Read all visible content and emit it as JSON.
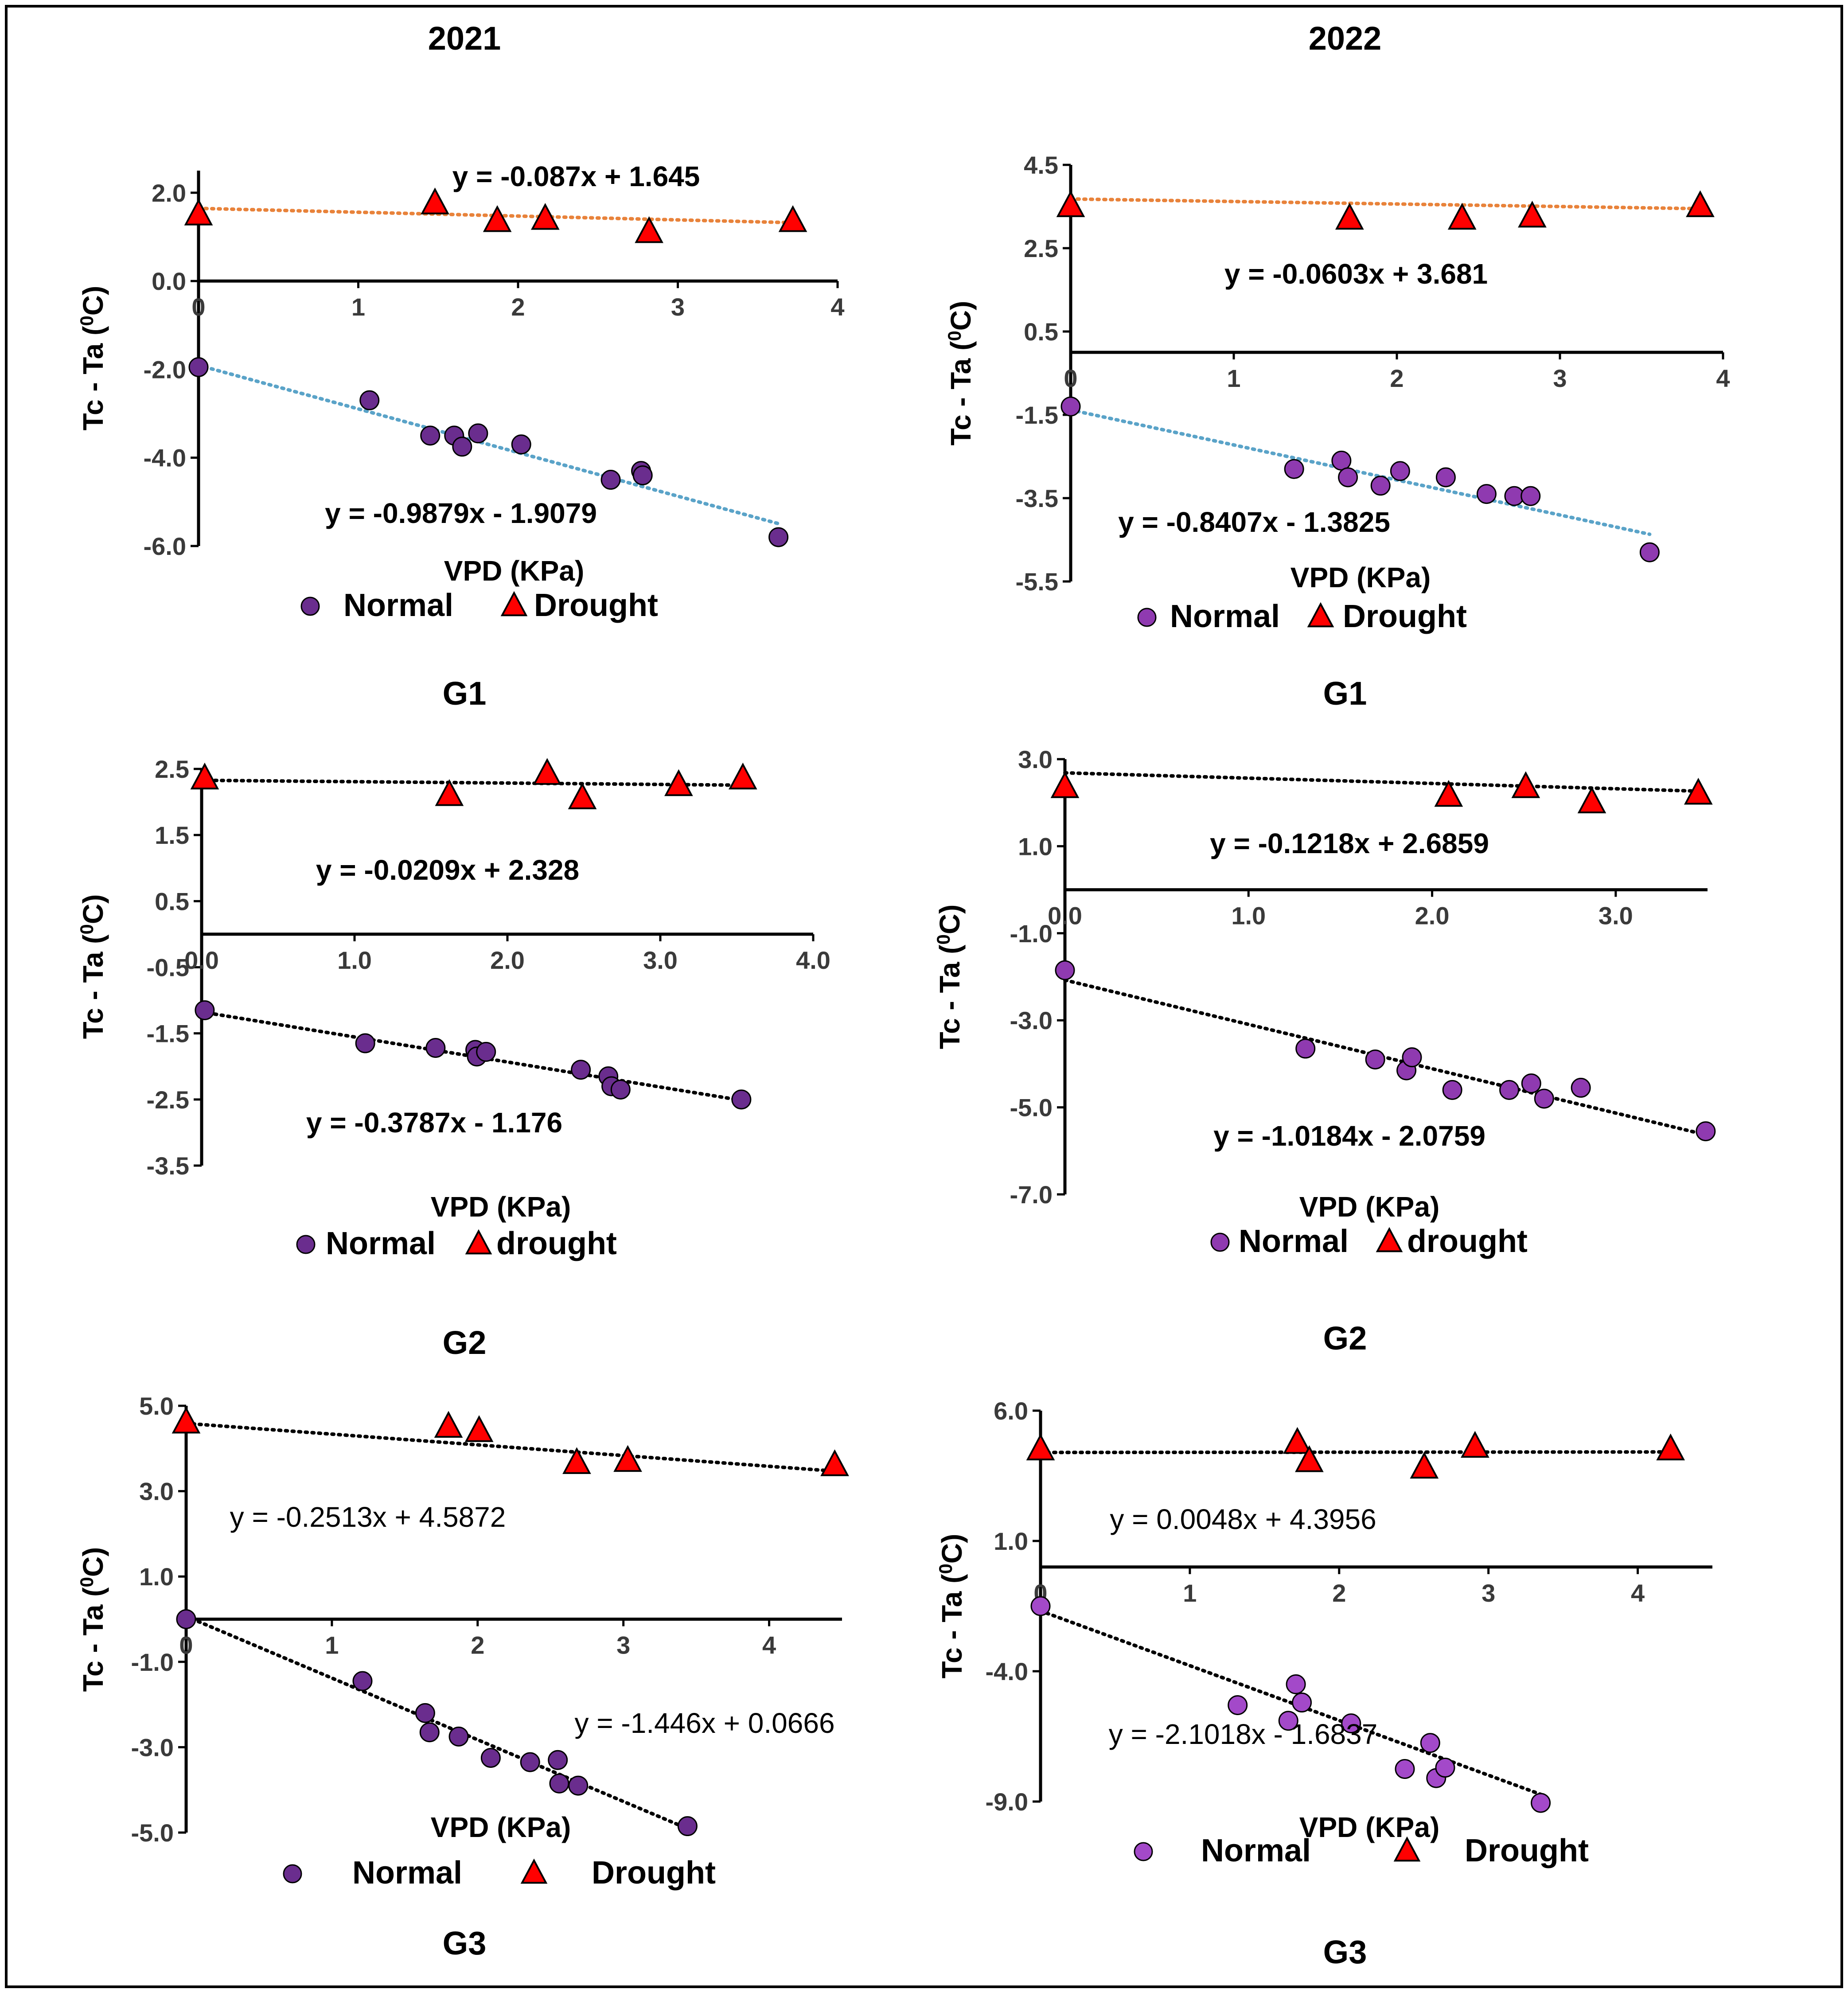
{
  "figure": {
    "column_titles": [
      "2021",
      "2022"
    ],
    "colors": {
      "normal_2021": "#6a2d8e",
      "normal_2022": "#8f3ab0",
      "normal_light": "#a349c9",
      "drought": "#ff0000",
      "frame": "#000000",
      "trend_orange": "#e8823a",
      "trend_blue": "#5aa3c8",
      "trend_black": "#000000"
    },
    "icons": {
      "normal": "circle-marker",
      "drought": "triangle-marker"
    }
  },
  "chart_data": [
    {
      "id": "2021-G1",
      "type": "scatter",
      "year": "2021",
      "group": "G1",
      "ylabel": "Tc - Ta (0C)",
      "ylabel_main": "Tc - Ta (",
      "ylabel_sup": "0",
      "ylabel_end": "C)",
      "xlabel": "VPD (KPa)",
      "xlim": [
        0,
        4
      ],
      "ylim": [
        -6,
        2.5
      ],
      "xticks": [
        "0",
        "1",
        "2",
        "3",
        "4"
      ],
      "xtick_values": [
        0,
        1,
        2,
        3,
        4
      ],
      "yticks": [
        "2.0",
        "0.0",
        "-2.0",
        "-4.0",
        "-6.0"
      ],
      "ytick_values": [
        2,
        0,
        -2,
        -4,
        -6
      ],
      "series": [
        {
          "name": "Normal",
          "marker": "circle",
          "color": "#6a2d8e",
          "x": [
            0.0,
            1.07,
            1.45,
            1.6,
            1.65,
            1.75,
            2.02,
            2.58,
            2.77,
            2.78,
            3.63
          ],
          "y": [
            -1.95,
            -2.7,
            -3.5,
            -3.5,
            -3.75,
            -3.45,
            -3.7,
            -4.5,
            -4.3,
            -4.4,
            -5.8
          ],
          "trend": {
            "slope": -0.9879,
            "intercept": -1.9079,
            "equation": "y = -0.9879x - 1.9079",
            "color": "#5aa3c8"
          }
        },
        {
          "name": "Drought",
          "marker": "triangle",
          "color": "#ff0000",
          "x": [
            0.0,
            1.48,
            1.87,
            2.17,
            2.82,
            3.72
          ],
          "y": [
            1.5,
            1.75,
            1.35,
            1.4,
            1.1,
            1.35
          ],
          "trend": {
            "slope": -0.087,
            "intercept": 1.645,
            "equation": "y = -0.087x + 1.645",
            "color": "#e8823a"
          }
        }
      ],
      "legend": [
        "Normal",
        "Drought"
      ]
    },
    {
      "id": "2022-G1",
      "type": "scatter",
      "year": "2022",
      "group": "G1",
      "ylabel": "Tc - Ta (0C)",
      "ylabel_main": "Tc - Ta (",
      "ylabel_sup": "0",
      "ylabel_end": "C)",
      "xlabel": "VPD (KPa)",
      "xlim": [
        0,
        4
      ],
      "ylim": [
        -5.5,
        4.5
      ],
      "xticks": [
        "0",
        "1",
        "2",
        "3",
        "4"
      ],
      "xtick_values": [
        0,
        1,
        2,
        3,
        4
      ],
      "yticks": [
        "4.5",
        "2.5",
        "0.5",
        "-1.5",
        "-3.5",
        "-5.5"
      ],
      "ytick_values": [
        4.5,
        2.5,
        0.5,
        -1.5,
        -3.5,
        -5.5
      ],
      "series": [
        {
          "name": "Normal",
          "marker": "circle",
          "color": "#8f3ab0",
          "x": [
            0.0,
            1.37,
            1.66,
            1.7,
            1.9,
            2.02,
            2.3,
            2.55,
            2.72,
            2.82,
            3.55
          ],
          "y": [
            -1.3,
            -2.8,
            -2.6,
            -3.0,
            -3.2,
            -2.85,
            -3.0,
            -3.4,
            -3.45,
            -3.45,
            -4.8
          ],
          "trend": {
            "slope": -0.8407,
            "intercept": -1.3825,
            "equation": "y = -0.8407x - 1.3825",
            "color": "#5aa3c8"
          }
        },
        {
          "name": "Drought",
          "marker": "triangle",
          "color": "#ff0000",
          "x": [
            0.0,
            1.71,
            2.4,
            2.83,
            3.86
          ],
          "y": [
            3.5,
            3.2,
            3.2,
            3.25,
            3.5
          ],
          "trend": {
            "slope": -0.0603,
            "intercept": 3.681,
            "equation": "y = -0.0603x + 3.681",
            "color": "#e8823a"
          }
        }
      ],
      "legend": [
        "Normal",
        "Drought"
      ]
    },
    {
      "id": "2021-G2",
      "type": "scatter",
      "year": "2021",
      "group": "G2",
      "ylabel": "Tc - Ta (0C)",
      "ylabel_main": "Tc - Ta (",
      "ylabel_sup": "0",
      "ylabel_end": "C)",
      "xlabel": "VPD (KPa)",
      "xlim": [
        0,
        4
      ],
      "ylim": [
        -3.5,
        2.5
      ],
      "xticks": [
        "0.0",
        "1.0",
        "2.0",
        "3.0",
        "4.0"
      ],
      "xtick_values": [
        0,
        1,
        2,
        3,
        4
      ],
      "yticks": [
        "2.5",
        "1.5",
        "0.5",
        "-0.5",
        "-1.5",
        "-2.5",
        "-3.5"
      ],
      "ytick_values": [
        2.5,
        1.5,
        0.5,
        -0.5,
        -1.5,
        -2.5,
        -3.5
      ],
      "series": [
        {
          "name": "Normal",
          "marker": "circle",
          "color": "#6a2d8e",
          "x": [
            0.02,
            1.07,
            1.53,
            1.79,
            1.8,
            1.86,
            2.48,
            2.66,
            2.68,
            2.74,
            3.53
          ],
          "y": [
            -1.15,
            -1.65,
            -1.72,
            -1.75,
            -1.85,
            -1.78,
            -2.05,
            -2.15,
            -2.3,
            -2.35,
            -2.5
          ],
          "trend": {
            "slope": -0.3787,
            "intercept": -1.176,
            "equation": "y = -0.3787x - 1.176",
            "color": "#000000"
          }
        },
        {
          "name": "drought",
          "marker": "triangle",
          "color": "#ff0000",
          "x": [
            0.02,
            1.62,
            2.26,
            2.49,
            3.12,
            3.54
          ],
          "y": [
            2.35,
            2.1,
            2.42,
            2.05,
            2.25,
            2.35
          ],
          "trend": {
            "slope": -0.0209,
            "intercept": 2.328,
            "equation": "y = -0.0209x + 2.328",
            "color": "#000000"
          }
        }
      ],
      "legend": [
        "Normal",
        "drought"
      ]
    },
    {
      "id": "2022-G2",
      "type": "scatter",
      "year": "2022",
      "group": "G2",
      "ylabel": "Tc - Ta (0C)",
      "ylabel_main": "Tc - Ta (",
      "ylabel_sup": "0",
      "ylabel_end": "C)",
      "xlabel": "VPD (KPa)",
      "xlim": [
        0,
        3.5
      ],
      "ylim": [
        -7,
        3
      ],
      "xticks": [
        "0.0",
        "1.0",
        "2.0",
        "3.0"
      ],
      "xtick_values": [
        0,
        1,
        2,
        3
      ],
      "yticks": [
        "3.0",
        "1.0",
        "-1.0",
        "-3.0",
        "-5.0",
        "-7.0"
      ],
      "ytick_values": [
        3,
        1,
        -1,
        -3,
        -5,
        -7
      ],
      "series": [
        {
          "name": "Normal",
          "marker": "circle",
          "color": "#8f3ab0",
          "x": [
            0.0,
            1.31,
            1.69,
            1.86,
            1.89,
            2.11,
            2.42,
            2.54,
            2.61,
            2.81,
            3.49
          ],
          "y": [
            -1.85,
            -3.65,
            -3.9,
            -4.15,
            -3.85,
            -4.6,
            -4.6,
            -4.45,
            -4.8,
            -4.55,
            -5.55
          ],
          "trend": {
            "slope": -1.0184,
            "intercept": -2.0759,
            "equation": "y = -1.0184x - 2.0759",
            "color": "#000000"
          }
        },
        {
          "name": "drought",
          "marker": "triangle",
          "color": "#ff0000",
          "x": [
            0.0,
            2.09,
            2.51,
            2.87,
            3.45
          ],
          "y": [
            2.35,
            2.15,
            2.35,
            2.0,
            2.2
          ],
          "trend": {
            "slope": -0.1218,
            "intercept": 2.6859,
            "equation": "y = -0.1218x + 2.6859",
            "color": "#000000"
          }
        }
      ],
      "legend": [
        "Normal",
        "drought"
      ]
    },
    {
      "id": "2021-G3",
      "type": "scatter",
      "year": "2021",
      "group": "G3",
      "ylabel": "Tc - Ta (0C)",
      "ylabel_main": "Tc - Ta (",
      "ylabel_sup": "0",
      "ylabel_end": "C)",
      "xlabel": "VPD (KPa)",
      "xlim": [
        0,
        4.5
      ],
      "ylim": [
        -5,
        5
      ],
      "xticks": [
        "0",
        "1",
        "2",
        "3",
        "4"
      ],
      "xtick_values": [
        0,
        1,
        2,
        3,
        4
      ],
      "yticks": [
        "5.0",
        "3.0",
        "1.0",
        "-1.0",
        "-3.0",
        "-5.0"
      ],
      "ytick_values": [
        5,
        3,
        1,
        -1,
        -3,
        -5
      ],
      "series": [
        {
          "name": "Normal",
          "marker": "circle",
          "color": "#6a2d8e",
          "x": [
            0.0,
            1.21,
            1.64,
            1.67,
            1.87,
            2.09,
            2.36,
            2.55,
            2.56,
            2.69,
            3.44
          ],
          "y": [
            0.0,
            -1.45,
            -2.2,
            -2.65,
            -2.75,
            -3.25,
            -3.35,
            -3.3,
            -3.85,
            -3.9,
            -4.85
          ],
          "trend": {
            "slope": -1.446,
            "intercept": 0.0666,
            "equation": "y = -1.446x + 0.0666",
            "color": "#000000"
          }
        },
        {
          "name": "Drought",
          "marker": "triangle",
          "color": "#ff0000",
          "x": [
            0.0,
            1.8,
            2.01,
            2.68,
            3.03,
            4.45
          ],
          "y": [
            4.6,
            4.5,
            4.4,
            3.65,
            3.7,
            3.6
          ],
          "trend": {
            "slope": -0.2513,
            "intercept": 4.5872,
            "equation": "y = -0.2513x + 4.5872",
            "color": "#000000"
          }
        }
      ],
      "legend": [
        "Normal",
        "Drought"
      ]
    },
    {
      "id": "2022-G3",
      "type": "scatter",
      "year": "2022",
      "group": "G3",
      "ylabel": "Tc - Ta (0C)",
      "ylabel_main": "Tc - Ta (",
      "ylabel_sup": "0",
      "ylabel_end": "C)",
      "xlabel": "VPD (KPa)",
      "xlim": [
        0,
        4.5
      ],
      "ylim": [
        -9,
        6
      ],
      "xticks": [
        "0",
        "1",
        "2",
        "3",
        "4"
      ],
      "xtick_values": [
        0,
        1,
        2,
        3,
        4
      ],
      "yticks": [
        "6.0",
        "1.0",
        "-4.0",
        "-9.0"
      ],
      "ytick_values": [
        6,
        1,
        -4,
        -9
      ],
      "series": [
        {
          "name": "Normal",
          "marker": "circle",
          "color": "#a349c9",
          "x": [
            0.0,
            1.32,
            1.66,
            1.71,
            1.75,
            2.08,
            2.44,
            2.61,
            2.65,
            2.71,
            3.35
          ],
          "y": [
            -1.5,
            -5.3,
            -5.9,
            -4.5,
            -5.2,
            -6.0,
            -7.75,
            -6.75,
            -8.1,
            -7.7,
            -9.05
          ],
          "trend": {
            "slope": -2.1018,
            "intercept": -1.6837,
            "equation": "y = -2.1018x - 1.6837",
            "color": "#000000"
          }
        },
        {
          "name": "Drought",
          "marker": "triangle",
          "color": "#ff0000",
          "x": [
            0.0,
            1.72,
            1.8,
            2.57,
            2.91,
            4.22
          ],
          "y": [
            4.5,
            4.75,
            4.05,
            3.8,
            4.6,
            4.5
          ],
          "trend": {
            "slope": 0.0048,
            "intercept": 4.3956,
            "equation": "y = 0.0048x + 4.3956",
            "color": "#000000"
          }
        }
      ],
      "legend": [
        "Normal",
        "Drought"
      ]
    }
  ]
}
